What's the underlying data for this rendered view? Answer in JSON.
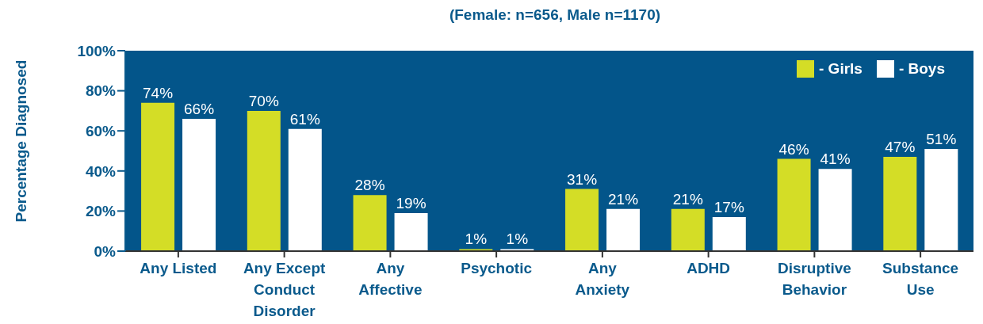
{
  "chart_data": {
    "type": "bar",
    "subtitle": "(Female: n=656, Male n=1170)",
    "ylabel": "Percentage Diagnosed",
    "categories": [
      "Any Listed",
      "Any Except Conduct Disorder",
      "Any Affective",
      "Psychotic",
      "Any Anxiety",
      "ADHD",
      "Disruptive Behavior",
      "Substance Use"
    ],
    "series": [
      {
        "name": "- Girls",
        "color": "#d4dd26",
        "values": [
          74,
          70,
          28,
          1,
          31,
          21,
          46,
          47
        ],
        "value_labels": [
          "74%",
          "70%",
          "28%",
          "1%",
          "31%",
          "21%",
          "46%",
          "47%"
        ]
      },
      {
        "name": "- Boys",
        "color": "#ffffff",
        "values": [
          66,
          61,
          19,
          1,
          21,
          17,
          41,
          51
        ],
        "value_labels": [
          "66%",
          "61%",
          "19%",
          "1%",
          "21%",
          "17%",
          "41%",
          "51%"
        ]
      }
    ],
    "ylim": [
      0,
      100
    ],
    "yticks": [
      {
        "value": 0,
        "label": "0%"
      },
      {
        "value": 20,
        "label": "20%"
      },
      {
        "value": 40,
        "label": "40%"
      },
      {
        "value": 60,
        "label": "60%"
      },
      {
        "value": 80,
        "label": "80%"
      },
      {
        "value": 100,
        "label": "100%"
      }
    ],
    "legend": "top right"
  }
}
